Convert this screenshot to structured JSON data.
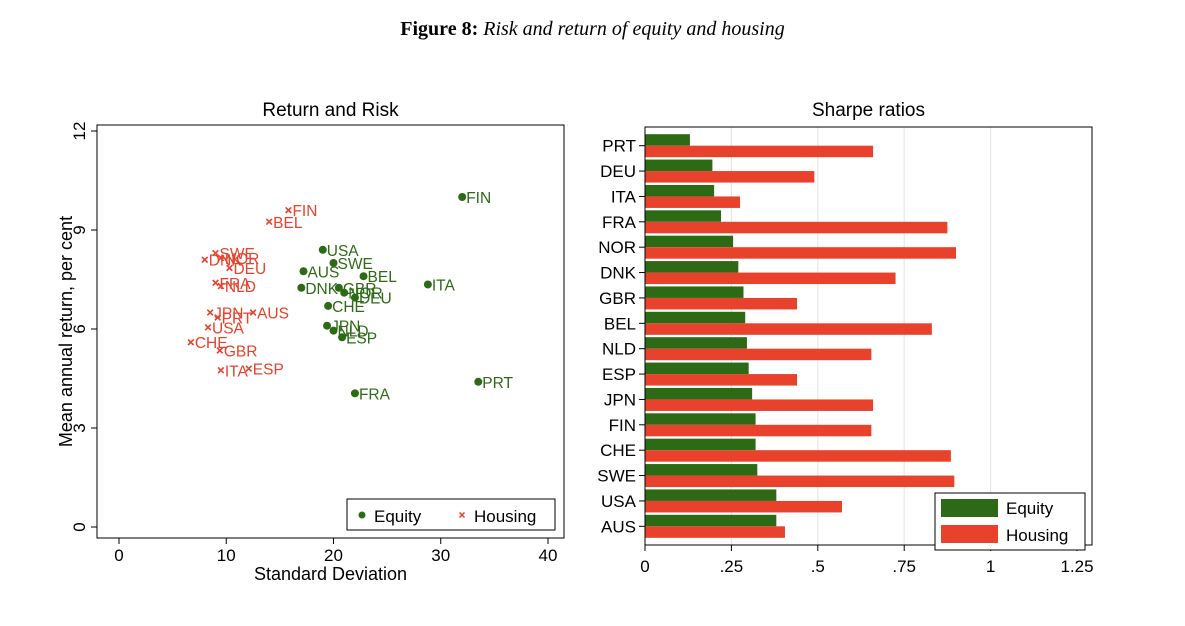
{
  "figure": {
    "label": "Figure 8:",
    "title": "Risk and return of equity and housing"
  },
  "colors": {
    "equity": "#2d6a16",
    "housing": "#e8412c"
  },
  "chart_data": [
    {
      "type": "scatter",
      "title": "Return and Risk",
      "xlabel": "Standard Deviation",
      "ylabel": "Mean annual return, per cent",
      "xlim": [
        0,
        40
      ],
      "ylim": [
        0,
        12
      ],
      "xticks": [
        "0",
        "10",
        "20",
        "30",
        "40"
      ],
      "yticks": [
        "0",
        "3",
        "6",
        "9",
        "12"
      ],
      "grid": false,
      "legend_position": "bottom-right",
      "series": [
        {
          "name": "Equity",
          "marker": "circle",
          "points": [
            {
              "label": "FIN",
              "x": 32.0,
              "y": 10.0
            },
            {
              "label": "USA",
              "x": 19.0,
              "y": 8.4
            },
            {
              "label": "SWE",
              "x": 20.0,
              "y": 8.0
            },
            {
              "label": "AUS",
              "x": 17.2,
              "y": 7.75
            },
            {
              "label": "BEL",
              "x": 22.8,
              "y": 7.6
            },
            {
              "label": "ITA",
              "x": 28.8,
              "y": 7.35
            },
            {
              "label": "DNK",
              "x": 17.0,
              "y": 7.25
            },
            {
              "label": "GBR",
              "x": 20.5,
              "y": 7.25
            },
            {
              "label": "NOR",
              "x": 21.0,
              "y": 7.1
            },
            {
              "label": "DEU",
              "x": 22.0,
              "y": 6.95
            },
            {
              "label": "CHE",
              "x": 19.5,
              "y": 6.7
            },
            {
              "label": "JPN",
              "x": 19.4,
              "y": 6.1
            },
            {
              "label": "NLD",
              "x": 20.0,
              "y": 5.95
            },
            {
              "label": "ESP",
              "x": 20.8,
              "y": 5.75
            },
            {
              "label": "PRT",
              "x": 33.5,
              "y": 4.4
            },
            {
              "label": "FRA",
              "x": 22.0,
              "y": 4.05
            }
          ]
        },
        {
          "name": "Housing",
          "marker": "x",
          "points": [
            {
              "label": "FIN",
              "x": 15.8,
              "y": 9.6
            },
            {
              "label": "BEL",
              "x": 14.0,
              "y": 9.25
            },
            {
              "label": "SWE",
              "x": 9.0,
              "y": 8.3
            },
            {
              "label": "NOR",
              "x": 9.5,
              "y": 8.15
            },
            {
              "label": "DNK",
              "x": 8.0,
              "y": 8.1
            },
            {
              "label": "DEU",
              "x": 10.3,
              "y": 7.85
            },
            {
              "label": "FRA",
              "x": 9.0,
              "y": 7.4
            },
            {
              "label": "NLD",
              "x": 9.5,
              "y": 7.3
            },
            {
              "label": "AUS",
              "x": 12.5,
              "y": 6.5
            },
            {
              "label": "JPN",
              "x": 8.5,
              "y": 6.5
            },
            {
              "label": "PRT",
              "x": 9.2,
              "y": 6.35
            },
            {
              "label": "USA",
              "x": 8.3,
              "y": 6.05
            },
            {
              "label": "CHE",
              "x": 6.7,
              "y": 5.6
            },
            {
              "label": "GBR",
              "x": 9.4,
              "y": 5.35
            },
            {
              "label": "ESP",
              "x": 12.1,
              "y": 4.8
            },
            {
              "label": "ITA",
              "x": 9.5,
              "y": 4.75
            }
          ]
        }
      ]
    },
    {
      "type": "bar",
      "orientation": "horizontal",
      "title": "Sharpe ratios",
      "xlabel": "",
      "ylabel": "",
      "xlim": [
        0,
        1.25
      ],
      "xticks": [
        "0",
        ".25",
        ".5",
        ".75",
        "1",
        "1.25"
      ],
      "grid": true,
      "legend_position": "bottom-right",
      "categories": [
        "PRT",
        "DEU",
        "ITA",
        "FRA",
        "NOR",
        "DNK",
        "GBR",
        "BEL",
        "NLD",
        "ESP",
        "JPN",
        "FIN",
        "CHE",
        "SWE",
        "USA",
        "AUS"
      ],
      "series": [
        {
          "name": "Equity",
          "values": [
            0.13,
            0.195,
            0.2,
            0.22,
            0.255,
            0.27,
            0.285,
            0.29,
            0.295,
            0.3,
            0.31,
            0.32,
            0.32,
            0.325,
            0.38,
            0.38
          ]
        },
        {
          "name": "Housing",
          "values": [
            0.66,
            0.49,
            0.275,
            0.875,
            0.9,
            0.725,
            0.44,
            0.83,
            0.655,
            0.44,
            0.66,
            0.655,
            0.885,
            0.895,
            0.57,
            0.405
          ]
        }
      ]
    }
  ]
}
